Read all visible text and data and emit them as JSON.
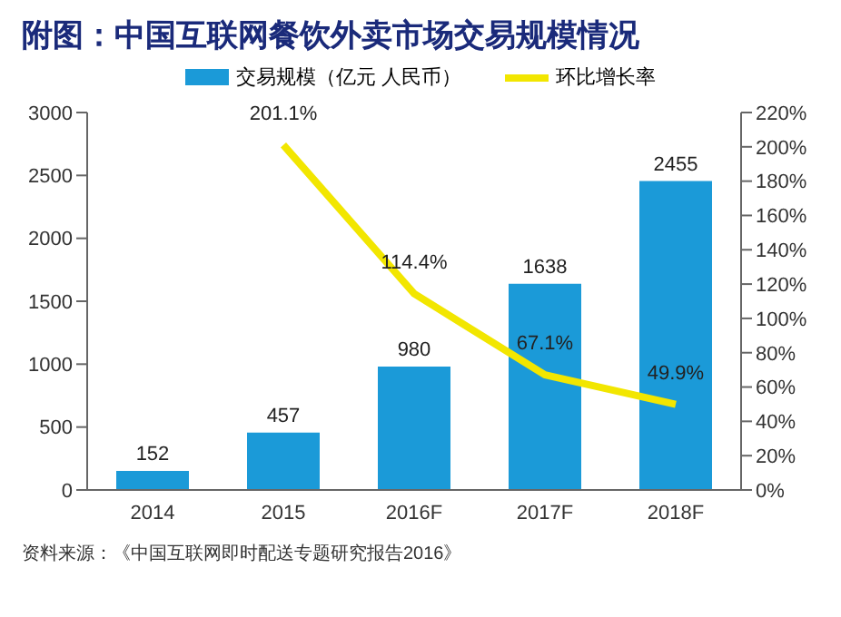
{
  "chart_data": {
    "type": "bar",
    "title": "附图：中国互联网餐饮外卖市场交易规模情况",
    "categories": [
      "2014",
      "2015",
      "2016F",
      "2017F",
      "2018F"
    ],
    "series": [
      {
        "name": "交易规模（亿元 人民币）",
        "color": "#1b9ad8",
        "values": [
          152,
          457,
          980,
          1638,
          2455
        ],
        "value_labels": [
          "152",
          "457",
          "980",
          "1638",
          "2455"
        ]
      },
      {
        "name": "环比增长率",
        "type": "line",
        "axis": "y2",
        "color": "#f2e600",
        "values": [
          null,
          201.1,
          114.4,
          67.1,
          49.9
        ],
        "value_labels": [
          null,
          "201.1%",
          "114.4%",
          "67.1%",
          "49.9%"
        ]
      }
    ],
    "ylim": [
      0,
      3000
    ],
    "yticks": [
      0,
      500,
      1000,
      1500,
      2000,
      2500,
      3000
    ],
    "y2lim": [
      0,
      220
    ],
    "y2ticks": [
      {
        "value": 0,
        "label": "0%"
      },
      {
        "value": 20,
        "label": "20%"
      },
      {
        "value": 40,
        "label": "40%"
      },
      {
        "value": 60,
        "label": "60%"
      },
      {
        "value": 80,
        "label": "80%"
      },
      {
        "value": 100,
        "label": "100%"
      },
      {
        "value": 120,
        "label": "120%"
      },
      {
        "value": 140,
        "label": "140%"
      },
      {
        "value": 160,
        "label": "160%"
      },
      {
        "value": 180,
        "label": "180%"
      },
      {
        "value": 200,
        "label": "200%"
      },
      {
        "value": 220,
        "label": "220%"
      }
    ],
    "grid": false,
    "legend": "top",
    "marker": "none",
    "annotations": [
      "资料来源：《中国互联网即时配送专题研究报告2016》"
    ]
  }
}
